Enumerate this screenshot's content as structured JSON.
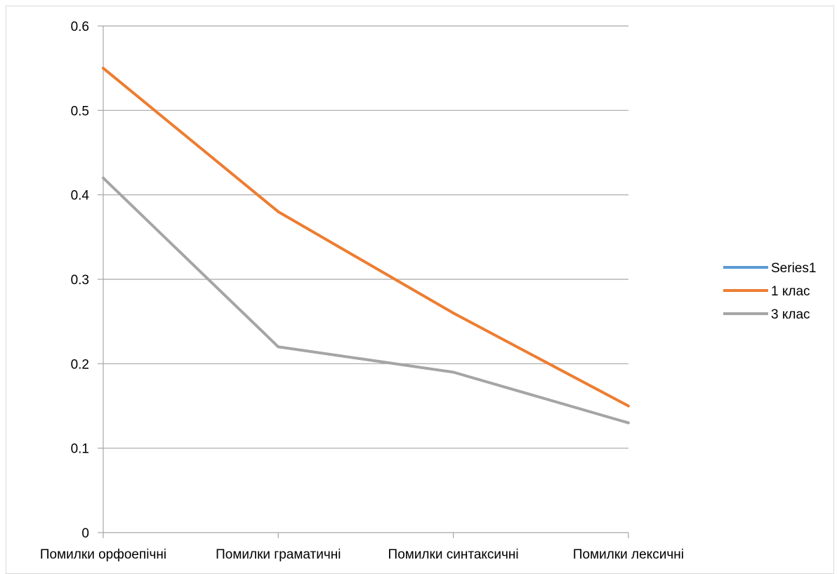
{
  "chart_data": {
    "type": "line",
    "categories": [
      "Помилки орфоепічні",
      "Помилки граматичні",
      "Помилки синтаксичні",
      "Помилки лексичні"
    ],
    "series": [
      {
        "name": "Series1",
        "color": "#5b9bd5",
        "values": [
          null,
          null,
          null,
          null
        ]
      },
      {
        "name": "1 клас",
        "color": "#ed7d31",
        "values": [
          0.55,
          0.38,
          0.26,
          0.15
        ]
      },
      {
        "name": "3 клас",
        "color": "#a5a5a5",
        "values": [
          0.42,
          0.22,
          0.19,
          0.13
        ]
      }
    ],
    "yticks": [
      "0",
      "0.1",
      "0.2",
      "0.3",
      "0.4",
      "0.5",
      "0.6"
    ],
    "ylim": [
      0,
      0.6
    ],
    "grid": true,
    "legend_position": "right",
    "gridline_color": "#a6a6a6",
    "axis_color": "#a6a6a6"
  }
}
